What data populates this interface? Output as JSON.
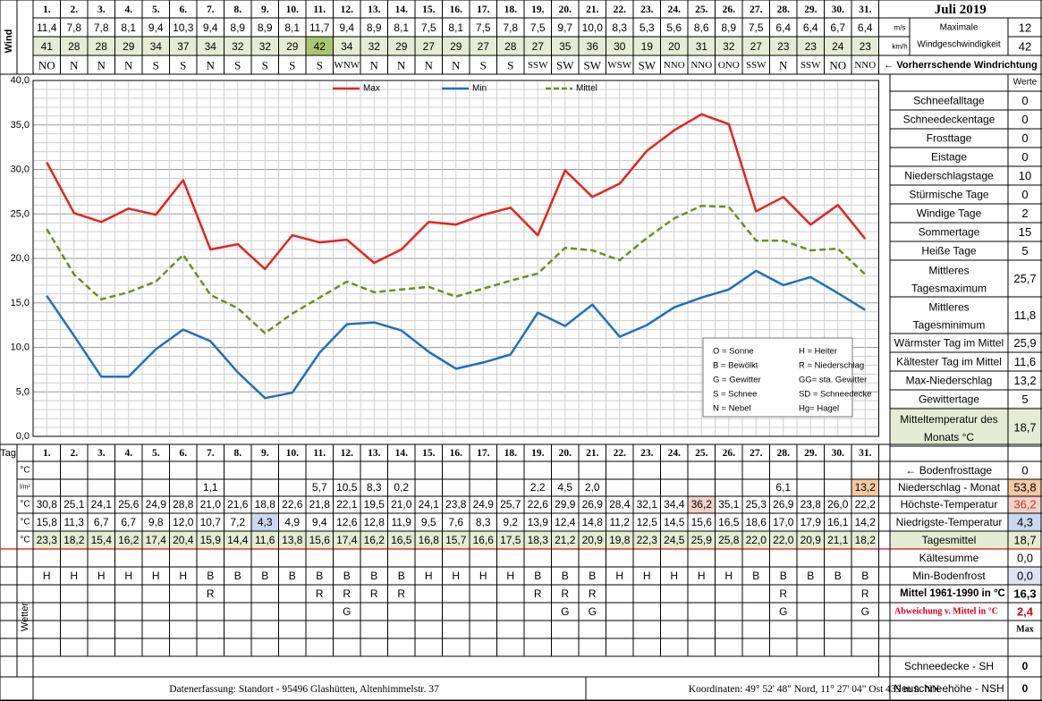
{
  "title": "Juli 2019",
  "wind_label": "Wind",
  "wetter_label": "Wetter",
  "tag_label": "Tag",
  "days": [
    "1.",
    "2.",
    "3.",
    "4.",
    "5.",
    "6.",
    "7.",
    "8.",
    "9.",
    "10.",
    "11.",
    "12.",
    "13.",
    "14.",
    "15.",
    "16.",
    "17.",
    "18.",
    "19.",
    "20.",
    "21.",
    "22.",
    "23.",
    "24.",
    "25.",
    "26.",
    "27.",
    "28.",
    "29.",
    "30.",
    "31."
  ],
  "wind_ms": [
    "11,4",
    "7,8",
    "7,8",
    "8,1",
    "9,4",
    "10,3",
    "9,4",
    "8,9",
    "8,9",
    "8,1",
    "11,7",
    "9,4",
    "8,9",
    "8,1",
    "7,5",
    "8,1",
    "7,5",
    "7,8",
    "7,5",
    "9,7",
    "10,0",
    "8,3",
    "5,3",
    "5,6",
    "8,6",
    "8,9",
    "7,5",
    "6,4",
    "6,4",
    "6,7",
    "6,4"
  ],
  "wind_kmh": [
    "41",
    "28",
    "28",
    "29",
    "34",
    "37",
    "34",
    "32",
    "32",
    "29",
    "42",
    "34",
    "32",
    "29",
    "27",
    "29",
    "27",
    "28",
    "27",
    "35",
    "36",
    "30",
    "19",
    "20",
    "31",
    "32",
    "27",
    "23",
    "23",
    "24",
    "23"
  ],
  "wind_dir": [
    "NO",
    "N",
    "N",
    "N",
    "S",
    "S",
    "N",
    "S",
    "S",
    "S",
    "S",
    "WNW",
    "N",
    "N",
    "N",
    "N",
    "S",
    "S",
    "SSW",
    "SW",
    "SW",
    "WSW",
    "SW",
    "NNO",
    "NNO",
    "ONO",
    "SSW",
    "N",
    "SSW",
    "NO",
    "NNO"
  ],
  "wind_highlight_index": 10,
  "max_wind": {
    "unit_ms": "m/s",
    "unit_kmh": "km/h",
    "label1": "Maximale",
    "label2": "Windgeschwindigkeit",
    "value_ms": "12",
    "value_kmh": "42"
  },
  "prevailing_label": "← Vorherrschende Windrichtung",
  "werte_label": "Werte",
  "stats": [
    {
      "label": "Schneefalltage",
      "value": "0"
    },
    {
      "label": "Schneedeckentage",
      "value": "0"
    },
    {
      "label": "Frosttage",
      "value": "0"
    },
    {
      "label": "Eistage",
      "value": "0"
    },
    {
      "label": "Niederschlagstage",
      "value": "10"
    },
    {
      "label": "Stürmische Tage",
      "value": "0"
    },
    {
      "label": "Windige Tage",
      "value": "2"
    },
    {
      "label": "Sommertage",
      "value": "15"
    },
    {
      "label": "Heiße Tage",
      "value": "5"
    },
    {
      "label": "Mittleres Tagesmaximum",
      "value": "25,7"
    },
    {
      "label": "Mittleres Tagesminimum",
      "value": "11,8"
    },
    {
      "label": "Wärmster Tag im Mittel",
      "value": "25,9"
    },
    {
      "label": "Kältester Tag im Mittel",
      "value": "11,6"
    },
    {
      "label": "Max-Niederschlag",
      "value": "13,2"
    },
    {
      "label": "Gewittertage",
      "value": "5"
    },
    {
      "label": "Mitteltemperatur des Monats °C",
      "value": "18,7"
    }
  ],
  "legend_codes": [
    [
      "O = Sonne",
      "H = Heiter"
    ],
    [
      "B = Bewölkt",
      "R = Niederschlag"
    ],
    [
      "G = Gewitter",
      "GG= sta. Gewitter"
    ],
    [
      "S = Schnee",
      "SD = Schneedecke"
    ],
    [
      "N = Nebel",
      "Hg= Hagel"
    ]
  ],
  "chart_data": {
    "type": "line",
    "x": [
      "1.",
      "2.",
      "3.",
      "4.",
      "5.",
      "6.",
      "7.",
      "8.",
      "9.",
      "10.",
      "11.",
      "12.",
      "13.",
      "14.",
      "15.",
      "16.",
      "17.",
      "18.",
      "19.",
      "20.",
      "21.",
      "22.",
      "23.",
      "24.",
      "25.",
      "26.",
      "27.",
      "28.",
      "29.",
      "30.",
      "31."
    ],
    "series": [
      {
        "name": "Max",
        "color": "#e8221e",
        "values": [
          30.8,
          25.1,
          24.1,
          25.6,
          24.9,
          28.8,
          21.0,
          21.6,
          18.8,
          22.6,
          21.8,
          22.1,
          19.5,
          21.0,
          24.1,
          23.8,
          24.9,
          25.7,
          22.6,
          29.9,
          26.9,
          28.4,
          32.1,
          34.4,
          36.2,
          35.1,
          25.3,
          26.9,
          23.8,
          26.0,
          22.2
        ]
      },
      {
        "name": "Min",
        "color": "#1f6fbf",
        "values": [
          15.8,
          11.3,
          6.7,
          6.7,
          9.8,
          12.0,
          10.7,
          7.2,
          4.3,
          4.9,
          9.4,
          12.6,
          12.8,
          11.9,
          9.5,
          7.6,
          8.3,
          9.2,
          13.9,
          12.4,
          14.8,
          11.2,
          12.5,
          14.5,
          15.6,
          16.5,
          18.6,
          17.0,
          17.9,
          16.1,
          14.2
        ]
      },
      {
        "name": "Mittel",
        "color": "#6b8e23",
        "values": [
          23.3,
          18.2,
          15.4,
          16.2,
          17.4,
          20.4,
          15.9,
          14.4,
          11.6,
          13.8,
          15.6,
          17.4,
          16.2,
          16.5,
          16.8,
          15.7,
          16.6,
          17.5,
          18.3,
          21.2,
          20.9,
          19.8,
          22.3,
          24.5,
          25.9,
          25.8,
          22.0,
          22.0,
          20.9,
          21.1,
          18.2
        ]
      }
    ],
    "ylim": [
      0,
      40
    ],
    "yticks": [
      "0,0",
      "5,0",
      "10,0",
      "15,0",
      "20,0",
      "25,0",
      "30,0",
      "35,0",
      "40,0"
    ],
    "grid": true,
    "legend_position": "top"
  },
  "table": {
    "bodenfrost_label": "← Bodenfrosttage",
    "bodenfrost_value": "0",
    "rows": [
      {
        "unit": "°C",
        "key": "boden",
        "values": [
          "",
          "",
          "",
          "",
          "",
          "",
          "",
          "",
          "",
          "",
          "",
          "",
          "",
          "",
          "",
          "",
          "",
          "",
          "",
          "",
          "",
          "",
          "",
          "",
          "",
          "",
          "",
          "",
          "",
          "",
          ""
        ]
      },
      {
        "unit": "l/m²",
        "key": "precip",
        "values": [
          "",
          "",
          "",
          "",
          "",
          "",
          "1,1",
          "",
          "",
          "",
          "5,7",
          "10,5",
          "8,3",
          "0,2",
          "",
          "",
          "",
          "",
          "2,2",
          "4,5",
          "2,0",
          "",
          "",
          "",
          "",
          "",
          "",
          "6,1",
          "",
          "",
          "13,2"
        ],
        "label": "Niederschlag - Monat",
        "total": "53,8"
      },
      {
        "unit": "°C",
        "key": "max",
        "values": [
          "30,8",
          "25,1",
          "24,1",
          "25,6",
          "24,9",
          "28,8",
          "21,0",
          "21,6",
          "18,8",
          "22,6",
          "21,8",
          "22,1",
          "19,5",
          "21,0",
          "24,1",
          "23,8",
          "24,9",
          "25,7",
          "22,6",
          "29,9",
          "26,9",
          "28,4",
          "32,1",
          "34,4",
          "36,2",
          "35,1",
          "25,3",
          "26,9",
          "23,8",
          "26,0",
          "22,2"
        ],
        "label": "Höchste-Temperatur",
        "total": "36,2"
      },
      {
        "unit": "°C",
        "key": "min",
        "values": [
          "15,8",
          "11,3",
          "6,7",
          "6,7",
          "9,8",
          "12,0",
          "10,7",
          "7,2",
          "4,3",
          "4,9",
          "9,4",
          "12,6",
          "12,8",
          "11,9",
          "9,5",
          "7,6",
          "8,3",
          "9,2",
          "13,9",
          "12,4",
          "14,8",
          "11,2",
          "12,5",
          "14,5",
          "15,6",
          "16,5",
          "18,6",
          "17,0",
          "17,9",
          "16,1",
          "14,2"
        ],
        "label": "Niedrigste-Temperatur",
        "total": "4,3"
      },
      {
        "unit": "°C",
        "key": "mean",
        "values": [
          "23,3",
          "18,2",
          "15,4",
          "16,2",
          "17,4",
          "20,4",
          "15,9",
          "14,4",
          "11,6",
          "13,8",
          "15,6",
          "17,4",
          "16,2",
          "16,5",
          "16,8",
          "15,7",
          "16,6",
          "17,5",
          "18,3",
          "21,2",
          "20,9",
          "19,8",
          "22,3",
          "24,5",
          "25,9",
          "25,8",
          "22,0",
          "22,0",
          "20,9",
          "21,1",
          "18,2"
        ],
        "label": "Tagesmittel",
        "total": "18,7"
      }
    ],
    "kaeltesumme_label": "Kältesumme",
    "kaeltesumme_value": "0,0",
    "weather_rows": [
      [
        "H",
        "H",
        "H",
        "H",
        "H",
        "H",
        "B",
        "B",
        "B",
        "B",
        "B",
        "B",
        "B",
        "B",
        "H",
        "H",
        "H",
        "H",
        "B",
        "B",
        "B",
        "H",
        "H",
        "H",
        "H",
        "H",
        "B",
        "B",
        "B",
        "B",
        "B"
      ],
      [
        "",
        "",
        "",
        "",
        "",
        "",
        "R",
        "",
        "",
        "",
        "R",
        "R",
        "R",
        "R",
        "",
        "",
        "",
        "",
        "R",
        "R",
        "R",
        "",
        "",
        "",
        "",
        "",
        "",
        "R",
        "",
        "",
        "R"
      ],
      [
        "",
        "",
        "",
        "",
        "",
        "",
        "",
        "",
        "",
        "",
        "",
        "G",
        "",
        "",
        "",
        "",
        "",
        "",
        "",
        "G",
        "G",
        "",
        "",
        "",
        "",
        "",
        "",
        "G",
        "",
        "",
        "G"
      ],
      [
        "",
        "",
        "",
        "",
        "",
        "",
        "",
        "",
        "",
        "",
        "",
        "",
        "",
        "",
        "",
        "",
        "",
        "",
        "",
        "",
        "",
        "",
        "",
        "",
        "",
        "",
        "",
        "",
        "",
        "",
        ""
      ]
    ],
    "minbodenfrost_label": "Min-Bodenfrost",
    "minbodenfrost_value": "0,0",
    "mittel_label": "Mittel 1961-1990 in °C",
    "mittel_value": "16,3",
    "abweichung_label": "Abweichung v. Mittel in °C",
    "abweichung_value": "2,4",
    "max_label": "Max",
    "schneedecke_label": "Schneedecke -  SH",
    "schneedecke_value": "0",
    "neuschnee_label": "Neuschneehöhe - NSH",
    "neuschnee_value": "0"
  },
  "footer": {
    "left": "Datenerfassung:  Standort -  95496  Glashütten, Altenhimmelstr. 37",
    "right": "Koordinaten:  49° 52' 48\" Nord,   11° 27' 04\" Ost   439 m ü. NN"
  }
}
